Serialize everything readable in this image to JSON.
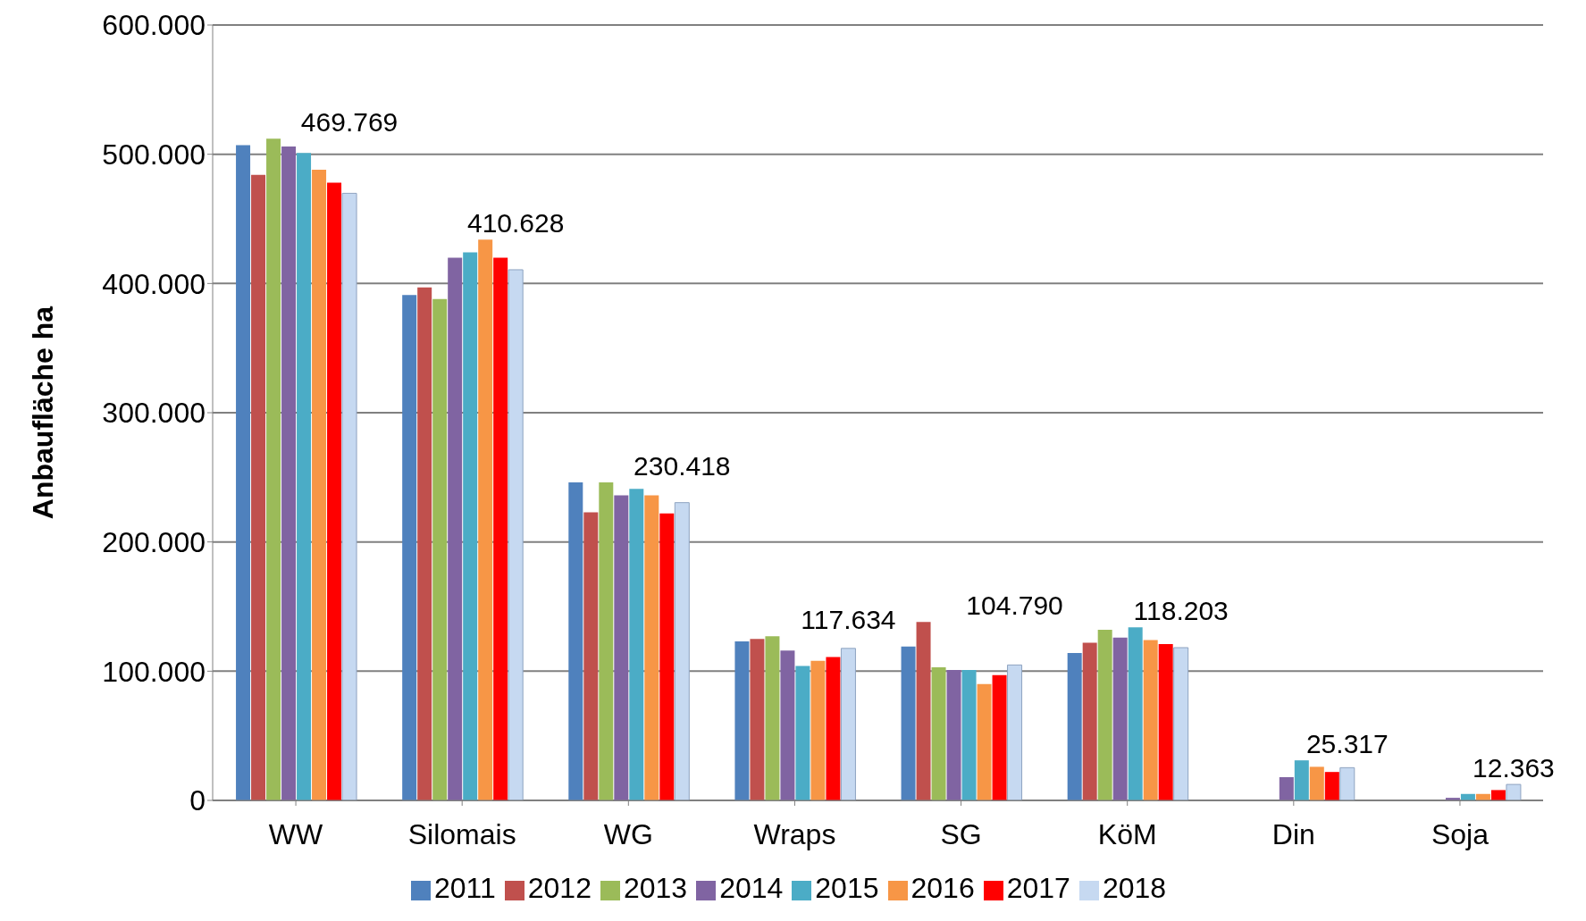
{
  "chart_data": {
    "type": "bar",
    "ylabel": "Anbaufläche ha",
    "categories": [
      "WW",
      "Silomais",
      "WG",
      "Wraps",
      "SG",
      "KöM",
      "Din",
      "Soja"
    ],
    "series": [
      {
        "name": "2011",
        "color": "#4f81bd",
        "values": [
          507000,
          391000,
          246000,
          123000,
          119000,
          114000,
          null,
          null
        ]
      },
      {
        "name": "2012",
        "color": "#c0504d",
        "values": [
          484000,
          397000,
          223000,
          125000,
          138000,
          122000,
          null,
          null
        ]
      },
      {
        "name": "2013",
        "color": "#9bbb59",
        "values": [
          512000,
          388000,
          246000,
          127000,
          103000,
          132000,
          null,
          null
        ]
      },
      {
        "name": "2014",
        "color": "#8064a2",
        "values": [
          506000,
          420000,
          236000,
          116000,
          101000,
          126000,
          18000,
          2000
        ]
      },
      {
        "name": "2015",
        "color": "#4bacc6",
        "values": [
          501000,
          424000,
          241000,
          104000,
          101000,
          134000,
          31000,
          5000
        ]
      },
      {
        "name": "2016",
        "color": "#f79646",
        "values": [
          488000,
          434000,
          236000,
          108000,
          90000,
          124000,
          26000,
          5000
        ]
      },
      {
        "name": "2017",
        "color": "#ff0000",
        "values": [
          478000,
          420000,
          222000,
          111000,
          97000,
          121000,
          22000,
          8000
        ]
      },
      {
        "name": "2018",
        "color": "#c6d9f1",
        "values": [
          469769,
          410628,
          230418,
          117634,
          104790,
          118203,
          25317,
          12363
        ],
        "value_labels": [
          "469.769",
          "410.628",
          "230.418",
          "117.634",
          "104.790",
          "118.203",
          "25.317",
          "12.363"
        ]
      }
    ],
    "ylim": [
      0,
      600000
    ],
    "yticks": [
      {
        "value": 0,
        "label": "0"
      },
      {
        "value": 100000,
        "label": "100.000"
      },
      {
        "value": 200000,
        "label": "200.000"
      },
      {
        "value": 300000,
        "label": "300.000"
      },
      {
        "value": 400000,
        "label": "400.000"
      },
      {
        "value": 500000,
        "label": "500.000"
      },
      {
        "value": 600000,
        "label": "600.000"
      }
    ],
    "grid": "y",
    "legend": "bottom"
  }
}
